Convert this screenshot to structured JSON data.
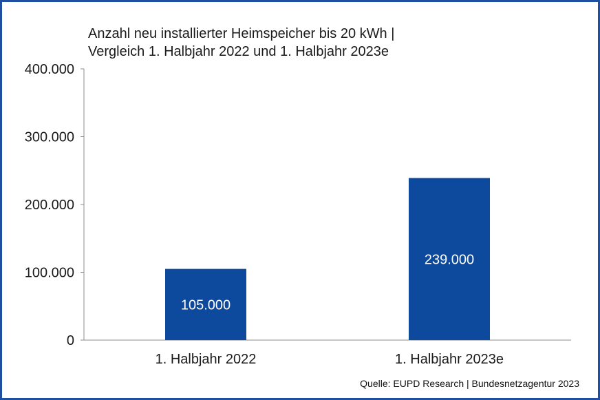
{
  "chart_data": {
    "type": "bar",
    "title_lines": [
      "Anzahl neu installierter Heimspeicher bis 20 kWh |",
      "Vergleich 1. Halbjahr 2022 und 1. Halbjahr 2023e"
    ],
    "categories": [
      "1. Halbjahr 2022",
      "1. Halbjahr 2023e"
    ],
    "values": [
      105000,
      239000
    ],
    "data_labels": [
      "105.000",
      "239.000"
    ],
    "ylim": [
      0,
      400000
    ],
    "yticks": [
      0,
      100000,
      200000,
      300000,
      400000
    ],
    "ytick_labels": [
      "0",
      "100.000",
      "200.000",
      "300.000",
      "400.000"
    ],
    "xlabel": "",
    "ylabel": "",
    "grid": false,
    "legend": "none",
    "bar_color": "#0d4a9e",
    "source": "Quelle: EUPD Research | Bundesnetzagentur 2023"
  }
}
